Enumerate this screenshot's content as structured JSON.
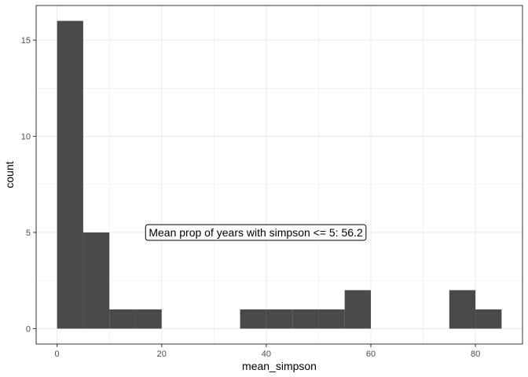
{
  "chart_data": {
    "type": "bar",
    "subtype": "histogram",
    "xlabel": "mean_simpson",
    "ylabel": "count",
    "xlim": [
      -4,
      89
    ],
    "ylim": [
      -0.8,
      16.8
    ],
    "bin_width": 5,
    "bins": [
      {
        "x0": 0,
        "x1": 5,
        "count": 16
      },
      {
        "x0": 5,
        "x1": 10,
        "count": 5
      },
      {
        "x0": 10,
        "x1": 15,
        "count": 1
      },
      {
        "x0": 15,
        "x1": 20,
        "count": 1
      },
      {
        "x0": 20,
        "x1": 25,
        "count": 0
      },
      {
        "x0": 25,
        "x1": 30,
        "count": 0
      },
      {
        "x0": 30,
        "x1": 35,
        "count": 0
      },
      {
        "x0": 35,
        "x1": 40,
        "count": 1
      },
      {
        "x0": 40,
        "x1": 45,
        "count": 1
      },
      {
        "x0": 45,
        "x1": 50,
        "count": 1
      },
      {
        "x0": 50,
        "x1": 55,
        "count": 1
      },
      {
        "x0": 55,
        "x1": 60,
        "count": 2
      },
      {
        "x0": 60,
        "x1": 65,
        "count": 0
      },
      {
        "x0": 65,
        "x1": 70,
        "count": 0
      },
      {
        "x0": 70,
        "x1": 75,
        "count": 0
      },
      {
        "x0": 75,
        "x1": 80,
        "count": 2
      },
      {
        "x0": 80,
        "x1": 85,
        "count": 1
      }
    ],
    "x_ticks": [
      {
        "value": 0,
        "label": "0"
      },
      {
        "value": 20,
        "label": "20"
      },
      {
        "value": 40,
        "label": "40"
      },
      {
        "value": 60,
        "label": "60"
      },
      {
        "value": 80,
        "label": "80"
      }
    ],
    "y_ticks": [
      {
        "value": 0,
        "label": "0"
      },
      {
        "value": 5,
        "label": "5"
      },
      {
        "value": 10,
        "label": "10"
      },
      {
        "value": 15,
        "label": "15"
      }
    ],
    "annotation": {
      "text": "Mean prop of years with simpson <= 5: 56.2",
      "x": 38,
      "y": 5
    },
    "grid": true,
    "legend": "none",
    "bar_color": "#4a4a4a",
    "grid_color": "#ebebeb",
    "panel_border_color": "#333333"
  }
}
